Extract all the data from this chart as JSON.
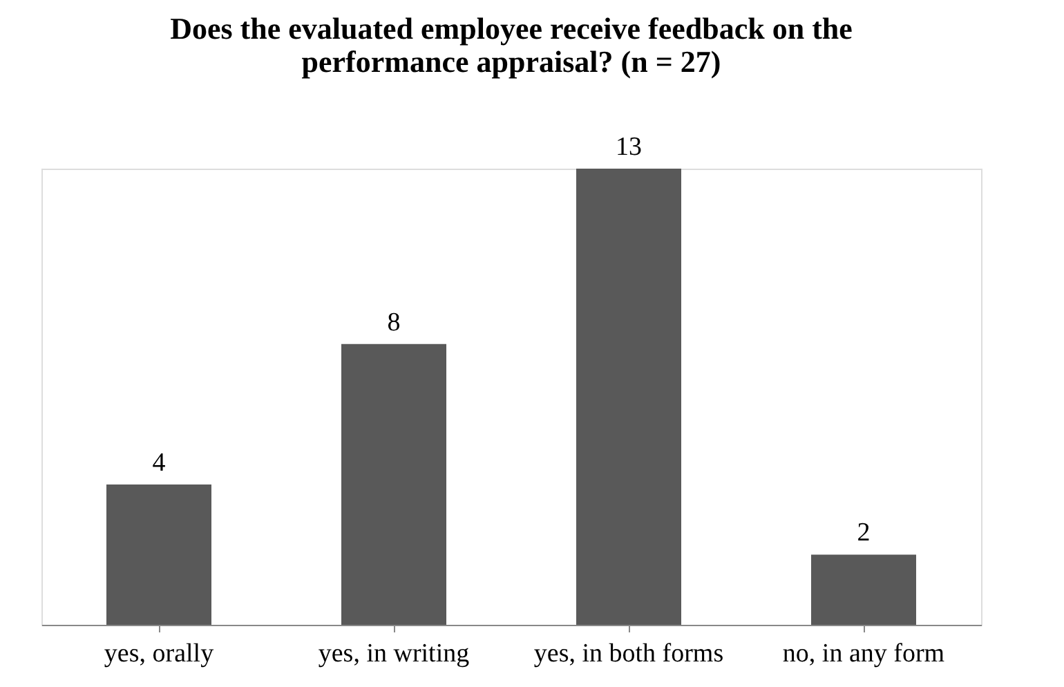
{
  "chart_data": {
    "type": "bar",
    "title": [
      "Does the evaluated employee receive feedback on the",
      "performance appraisal? (n = 27)"
    ],
    "categories": [
      "yes, orally",
      "yes, in writing",
      "yes, in both forms",
      "no, in any form"
    ],
    "values": [
      4,
      8,
      13,
      2
    ],
    "color": "#595959",
    "data_labels": true,
    "grid": false
  }
}
